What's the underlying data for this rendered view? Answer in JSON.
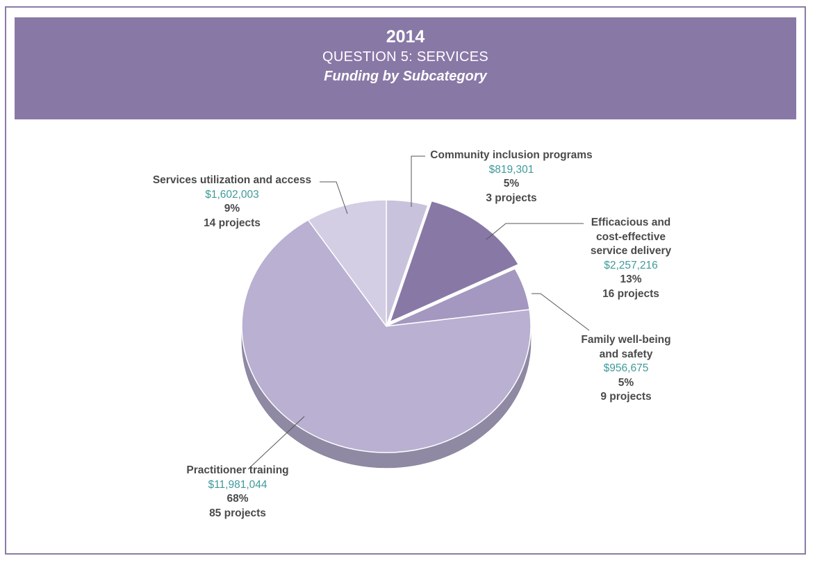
{
  "header": {
    "year": "2014",
    "question": "QUESTION 5:  SERVICES",
    "subtitle": "Funding by Subcategory"
  },
  "colors": {
    "banner": "#8878a6",
    "frame": "#8a7aa8",
    "amount_text": "#3f9a9a",
    "label_text": "#4a4a4a"
  },
  "chart_data": {
    "type": "pie",
    "title": "Funding by Subcategory",
    "slices": [
      {
        "label": "Community inclusion programs",
        "label_lines": [
          "Community inclusion programs"
        ],
        "amount": "$819,301",
        "value": 819301,
        "percent": "5%",
        "projects": "3 projects",
        "color": "#c9c2dc"
      },
      {
        "label": "Efficacious and cost-effective service delivery",
        "label_lines": [
          "Efficacious and",
          "cost-effective",
          "service delivery"
        ],
        "amount": "$2,257,216",
        "value": 2257216,
        "percent": "13%",
        "projects": "16 projects",
        "color": "#8878a6"
      },
      {
        "label": "Family well-being and safety",
        "label_lines": [
          "Family well-being",
          "and safety"
        ],
        "amount": "$956,675",
        "value": 956675,
        "percent": "5%",
        "projects": "9 projects",
        "color": "#a497c0"
      },
      {
        "label": "Practitioner training",
        "label_lines": [
          "Practitioner training"
        ],
        "amount": "$11,981,044",
        "value": 11981044,
        "percent": "68%",
        "projects": "85 projects",
        "color": "#b9b0d2"
      },
      {
        "label": "Services utilization and access",
        "label_lines": [
          "Services utilization and access"
        ],
        "amount": "$1,602,003",
        "value": 1602003,
        "percent": "9%",
        "projects": "14 projects",
        "color": "#d3cee3"
      }
    ]
  }
}
